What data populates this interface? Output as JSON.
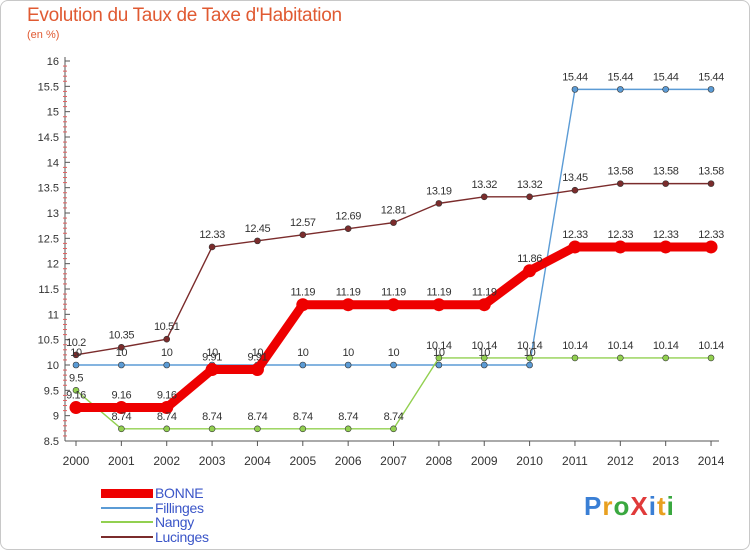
{
  "title": "Evolution du Taux de Taxe d'Habitation",
  "subtitle": "(en %)",
  "logo": {
    "text": "ProXiti",
    "letters": [
      "P",
      "r",
      "o",
      "X",
      "i",
      "t",
      "i"
    ],
    "colors": [
      "#3a7fd5",
      "#e8a020",
      "#3aa840",
      "#e03a3a",
      "#3a7fd5",
      "#e8a020",
      "#3aa840"
    ]
  },
  "chart_data": {
    "type": "line",
    "categories": [
      "2000",
      "2001",
      "2002",
      "2003",
      "2004",
      "2005",
      "2006",
      "2007",
      "2008",
      "2009",
      "2010",
      "2011",
      "2012",
      "2013",
      "2014"
    ],
    "ylim": [
      8.5,
      16
    ],
    "yticks": [
      "8.5",
      "9",
      "9.5",
      "10",
      "10.5",
      "11",
      "11.5",
      "12",
      "12.5",
      "13",
      "13.5",
      "14",
      "14.5",
      "15",
      "15.5",
      "16"
    ],
    "grid": false,
    "legend_position": "bottom-left",
    "series": [
      {
        "name": "BONNE",
        "color": "#ee0000",
        "values": [
          9.16,
          9.16,
          9.16,
          9.91,
          9.91,
          11.19,
          11.19,
          11.19,
          11.19,
          11.19,
          11.86,
          12.33,
          12.33,
          12.33,
          12.33
        ],
        "labels": [
          "9.16",
          "9.16",
          "9.16",
          "9.91",
          "9.91",
          "11.19",
          "11.19",
          "11.19",
          "11.19",
          "11.19",
          "11.86",
          "12.33",
          "12.33",
          "12.33",
          "12.33"
        ]
      },
      {
        "name": "Fillinges",
        "color": "#5b9bd5",
        "values": [
          10,
          10,
          10,
          10,
          10,
          10,
          10,
          10,
          10,
          10,
          10,
          15.44,
          15.44,
          15.44,
          15.44
        ],
        "labels": [
          "10",
          "10",
          "10",
          "10",
          "10",
          "10",
          "10",
          "10",
          "10",
          "10",
          "10",
          "15.44",
          "15.44",
          "15.44",
          "15.44"
        ]
      },
      {
        "name": "Nangy",
        "color": "#92d050",
        "values": [
          9.5,
          8.74,
          8.74,
          8.74,
          8.74,
          8.74,
          8.74,
          8.74,
          10.14,
          10.14,
          10.14,
          10.14,
          10.14,
          10.14,
          10.14
        ],
        "labels": [
          "9.5",
          "8.74",
          "8.74",
          "8.74",
          "8.74",
          "8.74",
          "8.74",
          "8.74",
          "10.14",
          "10.14",
          "10.14",
          "10.14",
          "10.14",
          "10.14",
          "10.14"
        ]
      },
      {
        "name": "Lucinges",
        "color": "#7b2c2c",
        "values": [
          10.2,
          10.35,
          10.51,
          12.33,
          12.45,
          12.57,
          12.69,
          12.81,
          13.19,
          13.32,
          13.32,
          13.45,
          13.58,
          13.58,
          13.58
        ],
        "labels": [
          "10.2",
          "10.35",
          "10.51",
          "12.33",
          "12.45",
          "12.57",
          "12.69",
          "12.81",
          "13.19",
          "13.32",
          "13.32",
          "13.45",
          "13.58",
          "13.58",
          "13.58"
        ]
      }
    ]
  }
}
